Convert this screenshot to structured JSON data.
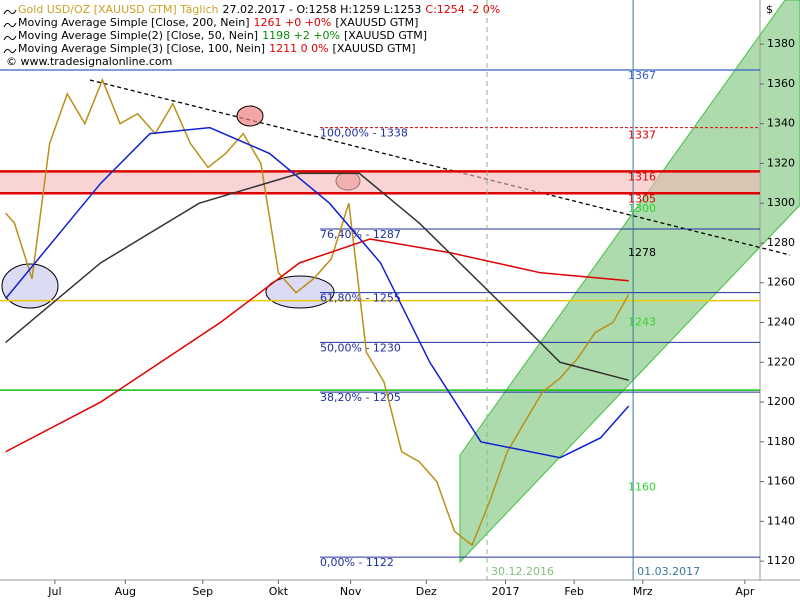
{
  "header": [
    [
      {
        "text": "Gold USD/OZ [XAUUSD GTM]  Täglich",
        "color": "#c9a227"
      },
      {
        "text": "27.02.2017 - O:1258 H:1259 L:1253",
        "color": "#000000"
      },
      {
        "text": "C:1254 -2 0%",
        "color": "#e00000"
      }
    ],
    [
      {
        "text": "Moving Average Simple [Close, 200, Nein]",
        "color": "#000000"
      },
      {
        "text": "1261 +0 +0%",
        "color": "#e00000"
      },
      {
        "text": "[XAUUSD GTM]",
        "color": "#000000"
      }
    ],
    [
      {
        "text": "Moving Average Simple(2) [Close, 50, Nein]",
        "color": "#000000"
      },
      {
        "text": "1198 +2 +0%",
        "color": "#0a8a0a"
      },
      {
        "text": "[XAUUSD GTM]",
        "color": "#000000"
      }
    ],
    [
      {
        "text": "Moving Average Simple(3) [Close, 100, Nein]",
        "color": "#000000"
      },
      {
        "text": "1211 0 0%",
        "color": "#e00000"
      },
      {
        "text": "[XAUUSD GTM]",
        "color": "#000000"
      }
    ],
    [
      {
        "text": "© www.tradesignalonline.com",
        "color": "#000000"
      }
    ]
  ],
  "chart_data": {
    "type": "line",
    "currency": "$",
    "xlim": [
      1.18,
      44.36
    ],
    "ylim": [
      1110.5,
      1402.2
    ],
    "yticks": [
      1120,
      1140,
      1160,
      1180,
      1200,
      1220,
      1240,
      1260,
      1280,
      1300,
      1320,
      1340,
      1360,
      1380
    ],
    "xticks": [
      {
        "value": 4.3,
        "label": "Jul"
      },
      {
        "value": 8.3,
        "label": "Aug"
      },
      {
        "value": 12.7,
        "label": "Sep"
      },
      {
        "value": 17.0,
        "label": "Okt"
      },
      {
        "value": 21.1,
        "label": "Nov"
      },
      {
        "value": 25.4,
        "label": "Dez"
      },
      {
        "value": 29.9,
        "label": "2017"
      },
      {
        "value": 33.8,
        "label": "Feb"
      },
      {
        "value": 37.7,
        "label": "Mrz"
      },
      {
        "value": 43.5,
        "label": "Apr"
      }
    ],
    "series": [
      {
        "name": "Gold USD/OZ [XAUUSD GTM]",
        "color": "#b8901a",
        "width": 1.5,
        "x": [
          1.5,
          2,
          3,
          4,
          5,
          6,
          7,
          8,
          9,
          10,
          11,
          12,
          13,
          14,
          15,
          16,
          17,
          18,
          19,
          20,
          21,
          22,
          23,
          24,
          25,
          26,
          27,
          28,
          29,
          30,
          31,
          32,
          33,
          34,
          35,
          36,
          36.9
        ],
        "values": [
          1295,
          1290,
          1262,
          1330,
          1355,
          1340,
          1362,
          1340,
          1345,
          1335,
          1350,
          1330,
          1318,
          1325,
          1335,
          1320,
          1265,
          1255,
          1262,
          1272,
          1300,
          1225,
          1210,
          1175,
          1170,
          1160,
          1135,
          1128,
          1150,
          1175,
          1190,
          1205,
          1212,
          1222,
          1235,
          1240,
          1254
        ]
      },
      {
        "name": "Moving Average Simple [Close, 200, Nein]",
        "color": "#e00000",
        "width": 1.5,
        "x": [
          1.5,
          6.9,
          13.7,
          18.2,
          22.2,
          26.8,
          31.9,
          36.9
        ],
        "values": [
          1175,
          1200,
          1240,
          1270,
          1282,
          1275,
          1265,
          1261
        ]
      },
      {
        "name": "Moving Average Simple(2) [Close, 50, Nein]",
        "color": "#1020d0",
        "width": 1.5,
        "x": [
          1.5,
          6.9,
          9.7,
          13.1,
          16.5,
          19.9,
          22.8,
          25.6,
          28.5,
          33.0,
          35.3,
          36.9
        ],
        "values": [
          1252,
          1310,
          1335,
          1338,
          1325,
          1300,
          1270,
          1220,
          1180,
          1172,
          1182,
          1198
        ]
      },
      {
        "name": "Moving Average Simple(3) [Close, 100, Nein]",
        "color": "#333333",
        "width": 1.5,
        "x": [
          1.5,
          6.9,
          12.5,
          18.2,
          21.6,
          25.0,
          29.6,
          33.0,
          36.9
        ],
        "values": [
          1230,
          1270,
          1300,
          1315,
          1315,
          1290,
          1250,
          1220,
          1211
        ]
      }
    ],
    "fib_levels": [
      {
        "value": 1338,
        "label": "100,00% - 1338"
      },
      {
        "value": 1287,
        "label": "76,40% - 1287"
      },
      {
        "value": 1255,
        "label": "61,80% - 1255"
      },
      {
        "value": 1230,
        "label": "50,00% - 1230"
      },
      {
        "value": 1205,
        "label": "38,20% - 1205"
      },
      {
        "value": 1122,
        "label": "0,00% - 1122"
      }
    ],
    "levels": [
      {
        "value": 1367,
        "color": "#3a5fcd",
        "width": 1.2
      },
      {
        "value": 1316,
        "color": "#e00000",
        "width": 2.5
      },
      {
        "value": 1305,
        "color": "#e00000",
        "width": 2.5
      },
      {
        "value": 1251,
        "color": "#f0c800",
        "width": 1.5
      },
      {
        "value": 1206,
        "color": "#10c010",
        "width": 1.5
      }
    ],
    "price_labels": [
      {
        "value": 1367,
        "color": "#3a5fcd"
      },
      {
        "value": 1337,
        "color": "#e00000"
      },
      {
        "value": 1316,
        "color": "#e00000"
      },
      {
        "value": 1305,
        "color": "#e00000"
      },
      {
        "value": 1300,
        "color": "#30d030"
      },
      {
        "value": 1278,
        "color": "#000000"
      },
      {
        "value": 1243,
        "color": "#30d030"
      },
      {
        "value": 1160,
        "color": "#30d030"
      }
    ],
    "date_markers": [
      {
        "value": 28.85,
        "label": "30.12.2016",
        "color": "#80c080"
      },
      {
        "value": 37.15,
        "label": "01.03.2017",
        "color": "#3a7a9a"
      }
    ]
  }
}
